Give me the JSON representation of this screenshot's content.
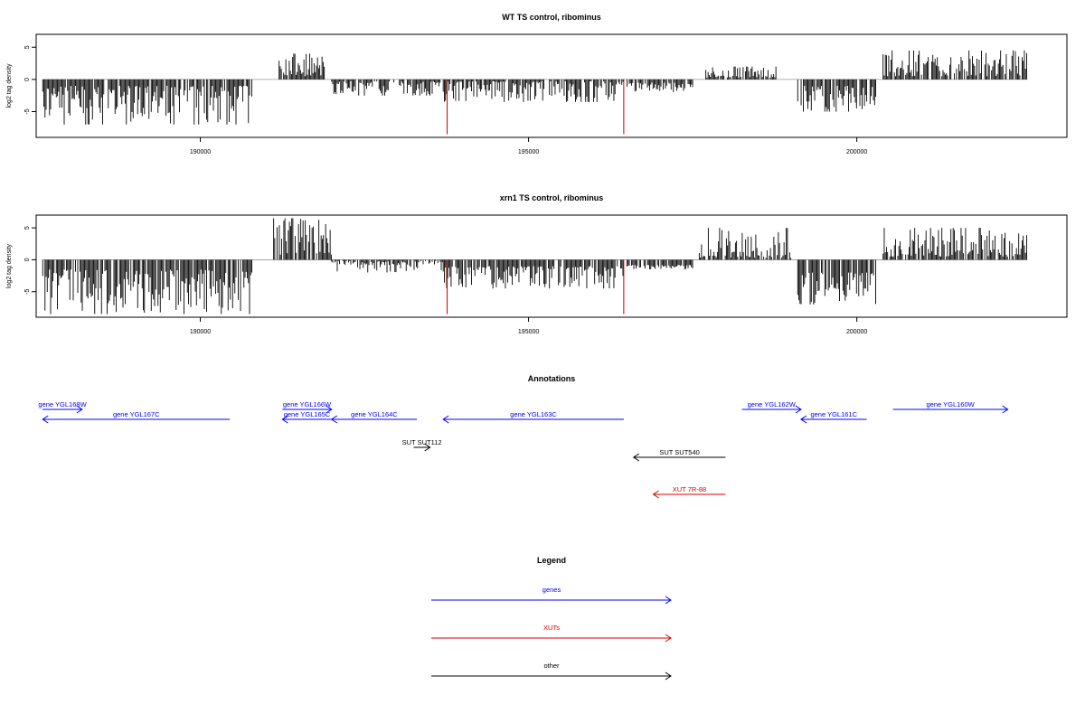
{
  "chart_data": [
    {
      "type": "bar",
      "title": "WT TS control, ribominus",
      "ylabel": "log2 tag density",
      "xlim": [
        187500,
        203200
      ],
      "ylim": [
        -9,
        7
      ],
      "yticks": [
        -5,
        0,
        5
      ],
      "xticks": [
        190000,
        195000,
        200000
      ],
      "grid": false,
      "highlight_color": "#cc0000",
      "highlights": [
        {
          "x": 193760,
          "value": -8.5
        },
        {
          "x": 196450,
          "value": -8.5
        }
      ],
      "segments": [
        {
          "x_start": 187600,
          "x_end": 190800,
          "min": -7.0,
          "max": -1.0
        },
        {
          "x_start": 191200,
          "x_end": 191900,
          "min": 0.5,
          "max": 4.0
        },
        {
          "x_start": 192000,
          "x_end": 193700,
          "min": -2.5,
          "max": -0.3
        },
        {
          "x_start": 193700,
          "x_end": 196450,
          "min": -3.5,
          "max": -0.3
        },
        {
          "x_start": 196500,
          "x_end": 197500,
          "min": -2.0,
          "max": 0.5
        },
        {
          "x_start": 197700,
          "x_end": 198800,
          "min": 0.3,
          "max": 2.0
        },
        {
          "x_start": 199100,
          "x_end": 200300,
          "min": -5.0,
          "max": -1.0
        },
        {
          "x_start": 200400,
          "x_end": 202600,
          "min": 0.5,
          "max": 4.5
        }
      ]
    },
    {
      "type": "bar",
      "title": "xrn1 TS control, ribominus",
      "ylabel": "log2 tag density",
      "xlim": [
        187500,
        203200
      ],
      "ylim": [
        -9,
        7
      ],
      "yticks": [
        -5,
        0,
        5
      ],
      "xticks": [
        190000,
        195000,
        200000
      ],
      "grid": false,
      "highlight_color": "#cc0000",
      "highlights": [
        {
          "x": 193760,
          "value": -8.5
        },
        {
          "x": 196450,
          "value": -8.5
        }
      ],
      "segments": [
        {
          "x_start": 187600,
          "x_end": 190800,
          "min": -8.5,
          "max": -1.5
        },
        {
          "x_start": 191100,
          "x_end": 192000,
          "min": 0.8,
          "max": 6.5
        },
        {
          "x_start": 192000,
          "x_end": 193700,
          "min": -2.0,
          "max": -0.2
        },
        {
          "x_start": 193700,
          "x_end": 196450,
          "min": -4.5,
          "max": -1.0
        },
        {
          "x_start": 196500,
          "x_end": 197500,
          "min": -1.5,
          "max": 0.8
        },
        {
          "x_start": 197600,
          "x_end": 199000,
          "min": 0.3,
          "max": 5.0
        },
        {
          "x_start": 199100,
          "x_end": 200300,
          "min": -7.0,
          "max": -2.0
        },
        {
          "x_start": 200400,
          "x_end": 202600,
          "min": 0.5,
          "max": 5.0
        }
      ]
    }
  ],
  "annotations": {
    "title": "Annotations",
    "features": [
      {
        "label": "gene YGL168W",
        "start": 187600,
        "end": 188200,
        "strand": "+",
        "row": 0,
        "color": "#0000ff"
      },
      {
        "label": "gene YGL167C",
        "start": 187600,
        "end": 190450,
        "strand": "-",
        "row": 1,
        "color": "#0000ff"
      },
      {
        "label": "gene YGL166W",
        "start": 191250,
        "end": 192000,
        "strand": "+",
        "row": 0,
        "color": "#0000ff"
      },
      {
        "label": "gene YGL165C",
        "start": 191250,
        "end": 192000,
        "strand": "-",
        "row": 1,
        "color": "#0000ff"
      },
      {
        "label": "gene YGL164C",
        "start": 192000,
        "end": 193300,
        "strand": "-",
        "row": 1,
        "color": "#0000ff"
      },
      {
        "label": "gene YGL163C",
        "start": 193700,
        "end": 196450,
        "strand": "-",
        "row": 1,
        "color": "#0000ff"
      },
      {
        "label": "gene YGL162W",
        "start": 198250,
        "end": 199150,
        "strand": "+",
        "row": 0,
        "color": "#0000ff"
      },
      {
        "label": "gene YGL161C",
        "start": 199150,
        "end": 200150,
        "strand": "-",
        "row": 1,
        "color": "#0000ff"
      },
      {
        "label": "gene YGL160W",
        "start": 200550,
        "end": 202300,
        "strand": "+",
        "row": 0,
        "color": "#0000ff"
      },
      {
        "label": "SUT SUT112",
        "start": 193250,
        "end": 193500,
        "strand": "+",
        "row": 2,
        "color": "#000000"
      },
      {
        "label": "SUT SUT540",
        "start": 196600,
        "end": 198000,
        "strand": "-",
        "row": 3,
        "color": "#000000"
      },
      {
        "label": "XUT 7R-88",
        "start": 196900,
        "end": 198000,
        "strand": "-",
        "row": 4,
        "color": "#dd0000"
      }
    ]
  },
  "legend": {
    "title": "Legend",
    "items": [
      {
        "label": "genes",
        "color": "#0000ff"
      },
      {
        "label": "XUTs",
        "color": "#dd0000"
      },
      {
        "label": "other",
        "color": "#000000"
      }
    ]
  }
}
